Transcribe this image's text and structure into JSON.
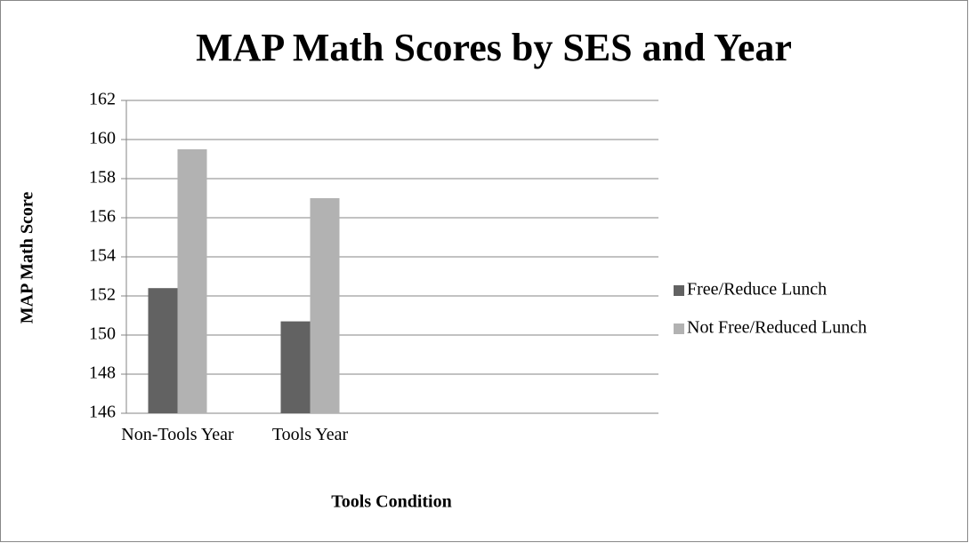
{
  "chart_data": {
    "type": "bar",
    "title": "MAP Math Scores by SES and Year",
    "x_label": "Tools  Condition",
    "y_label": "MAP Math Score",
    "categories": [
      "Non-Tools Year",
      "Tools Year",
      null,
      null
    ],
    "series": [
      {
        "name": "Free/Reduce Lunch",
        "color": "#626262",
        "values": [
          152.4,
          150.7,
          null,
          null
        ]
      },
      {
        "name": "Not Free/Reduced Lunch",
        "color": "#b2b2b2",
        "values": [
          159.5,
          157.0,
          null,
          null
        ]
      }
    ],
    "ylim": [
      146,
      162
    ],
    "yticks": [
      146,
      148,
      150,
      152,
      154,
      156,
      158,
      160,
      162
    ],
    "grid": true,
    "legend": "right"
  }
}
